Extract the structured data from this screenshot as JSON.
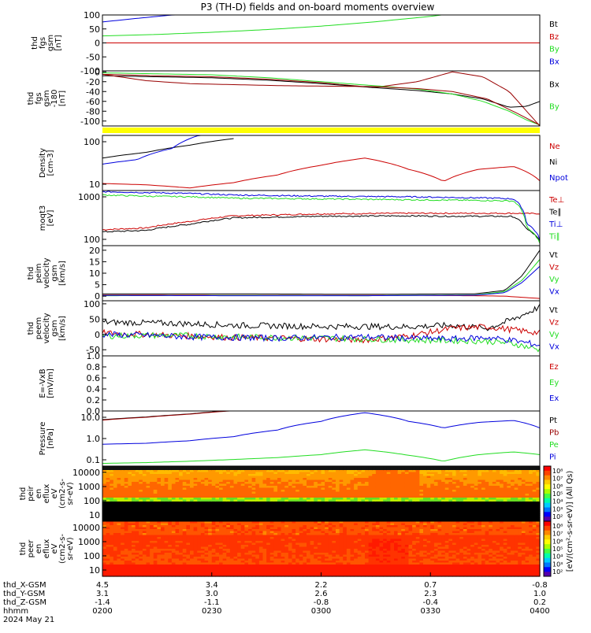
{
  "title": "P3 (TH-D) fields and on-board moments overview",
  "colors": {
    "black": "#000000",
    "red": "#cc0000",
    "green": "#22dd22",
    "blue": "#0000dd",
    "darkred": "#990000",
    "yellow": "#ffff00"
  },
  "chart_data": [
    {
      "type": "line",
      "ylabel": [
        "thd",
        "fgs",
        "gsm",
        "[nT]"
      ],
      "yticks": [
        "100",
        "50",
        "0",
        "-50",
        "-100"
      ],
      "ylim": [
        -100,
        100
      ],
      "legend": [
        "Bt",
        "Bz",
        "By",
        "Bx"
      ],
      "series": [
        {
          "name": "Bt",
          "color": "black",
          "x": [
            0,
            1
          ],
          "y": [
            0,
            0
          ]
        },
        {
          "name": "Bz",
          "color": "red",
          "x": [
            0,
            1
          ],
          "y": [
            0,
            0
          ]
        },
        {
          "name": "By",
          "color": "green",
          "x": [
            0,
            0.12,
            0.25,
            0.38,
            0.5,
            0.62,
            0.75,
            0.85
          ],
          "y": [
            25,
            30,
            38,
            48,
            60,
            75,
            95,
            115
          ]
        },
        {
          "name": "Bx",
          "color": "blue",
          "x": [
            0,
            0.08,
            0.16,
            0.24
          ],
          "y": [
            75,
            88,
            100,
            112
          ]
        }
      ]
    },
    {
      "type": "line",
      "ylabel": [
        "thd",
        "fgs",
        "gsm",
        "-180",
        "[nT]"
      ],
      "yticks": [
        "0",
        "-20",
        "-40",
        "-60",
        "-80",
        "-100"
      ],
      "ylim": [
        -110,
        2
      ],
      "legend": [
        "Bx",
        "By"
      ],
      "series": [
        {
          "name": "Bz",
          "color": "darkred",
          "x": [
            0,
            0.12,
            0.25,
            0.38,
            0.5,
            0.62,
            0.72,
            0.8,
            0.87,
            0.93,
            0.97,
            1
          ],
          "y": [
            -5,
            -8,
            -10,
            -15,
            -22,
            -32,
            -20,
            0,
            -10,
            -40,
            -80,
            -110
          ]
        },
        {
          "name": "Bt",
          "color": "black",
          "x": [
            0,
            0.12,
            0.25,
            0.38,
            0.5,
            0.62,
            0.72,
            0.8,
            0.87,
            0.93,
            0.97,
            1
          ],
          "y": [
            -8,
            -10,
            -12,
            -17,
            -24,
            -32,
            -38,
            -45,
            -55,
            -72,
            -70,
            -60
          ]
        },
        {
          "name": "By",
          "color": "green",
          "x": [
            0,
            0.12,
            0.25,
            0.38,
            0.5,
            0.62,
            0.72,
            0.8,
            0.87,
            0.93,
            0.97,
            1
          ],
          "y": [
            -2,
            -4,
            -6,
            -12,
            -20,
            -28,
            -35,
            -45,
            -60,
            -80,
            -98,
            -108
          ]
        },
        {
          "name": "Bx",
          "color": "darkred",
          "x": [
            0,
            0.1,
            0.2,
            0.3,
            0.4,
            0.5,
            0.62,
            0.72,
            0.8,
            0.88,
            0.95,
            1
          ],
          "y": [
            -5,
            -18,
            -24,
            -26,
            -28,
            -29,
            -30,
            -34,
            -40,
            -55,
            -85,
            -108
          ]
        }
      ]
    },
    {
      "type": "line",
      "ylabel": [
        "Density",
        "[cm-3]"
      ],
      "yticks": [
        "100",
        "10"
      ],
      "log": true,
      "ylim": [
        2,
        100
      ],
      "legend": [
        "Ne",
        "Ni",
        "Npot"
      ],
      "series": [
        {
          "name": "Ne",
          "color": "red",
          "x": [
            0,
            0.1,
            0.2,
            0.3,
            0.4,
            0.5,
            0.6,
            0.7,
            0.78,
            0.86,
            0.94,
            1
          ],
          "y": [
            3.3,
            3,
            2.4,
            3.5,
            6,
            12,
            20,
            9,
            3.8,
            9,
            11,
            4
          ]
        },
        {
          "name": "Ni",
          "color": "black",
          "x": [
            0,
            0.1,
            0.2,
            0.3
          ],
          "y": [
            20,
            30,
            50,
            80
          ]
        },
        {
          "name": "Npot",
          "color": "blue",
          "x": [
            0,
            0.08,
            0.16,
            0.24
          ],
          "y": [
            13,
            18,
            40,
            120
          ]
        }
      ]
    },
    {
      "type": "line",
      "ylabel": [
        "moqt3",
        "[eV]"
      ],
      "yticks": [
        "1000",
        "100"
      ],
      "log": true,
      "ylim": [
        20,
        3000
      ],
      "legend": [
        "Te⊥",
        "Te∥",
        "Ti⊥",
        "Ti∥"
      ],
      "series": [
        {
          "name": "Te⊥",
          "color": "red",
          "x": [
            0,
            0.1,
            0.2,
            0.3,
            0.5,
            0.7,
            0.8,
            0.9,
            0.94,
            0.97,
            1
          ],
          "y": [
            85,
            100,
            180,
            300,
            360,
            380,
            380,
            380,
            380,
            370,
            370
          ]
        },
        {
          "name": "Te∥",
          "color": "black",
          "x": [
            0,
            0.1,
            0.2,
            0.3,
            0.5,
            0.7,
            0.8,
            0.9,
            0.94,
            0.97,
            1
          ],
          "y": [
            70,
            80,
            140,
            250,
            290,
            300,
            290,
            290,
            280,
            90,
            30
          ]
        },
        {
          "name": "Ti⊥",
          "color": "blue",
          "x": [
            0,
            0.1,
            0.2,
            0.3,
            0.5,
            0.7,
            0.8,
            0.9,
            0.94,
            0.97,
            1
          ],
          "y": [
            2700,
            2500,
            2300,
            2000,
            1800,
            1700,
            1600,
            1500,
            1400,
            150,
            35
          ]
        },
        {
          "name": "Ti∥",
          "color": "green",
          "x": [
            0,
            0.1,
            0.2,
            0.3,
            0.5,
            0.7,
            0.8,
            0.9,
            0.94,
            0.97,
            1
          ],
          "y": [
            2000,
            1800,
            1700,
            1500,
            1400,
            1300,
            1250,
            1200,
            1150,
            100,
            25
          ]
        }
      ]
    },
    {
      "type": "line",
      "ylabel": [
        "thd",
        "peim",
        "velocity",
        "gsm",
        "[km/s]"
      ],
      "yticks": [
        "20",
        "15",
        "10",
        "5",
        "0"
      ],
      "ylim": [
        -2,
        22
      ],
      "legend": [
        "Vt",
        "Vz",
        "Vy",
        "Vx"
      ],
      "series": [
        {
          "name": "Vt",
          "color": "black",
          "x": [
            0,
            0.3,
            0.6,
            0.85,
            0.92,
            0.96,
            1
          ],
          "y": [
            1,
            1,
            0.8,
            1,
            2.5,
            9,
            20
          ]
        },
        {
          "name": "Vz",
          "color": "red",
          "x": [
            0,
            0.3,
            0.6,
            0.85,
            0.92,
            0.96,
            1
          ],
          "y": [
            0.5,
            0.4,
            0.3,
            0.2,
            0,
            -0.5,
            -1
          ]
        },
        {
          "name": "Vy",
          "color": "green",
          "x": [
            0,
            0.3,
            0.6,
            0.85,
            0.92,
            0.96,
            1
          ],
          "y": [
            0.2,
            0.3,
            0.2,
            0.5,
            2,
            7,
            16
          ]
        },
        {
          "name": "Vx",
          "color": "blue",
          "x": [
            0,
            0.3,
            0.6,
            0.85,
            0.92,
            0.96,
            1
          ],
          "y": [
            0.3,
            0.2,
            0.2,
            0.4,
            1.5,
            6,
            13
          ]
        }
      ]
    },
    {
      "type": "line",
      "ylabel": [
        "thd",
        "peem",
        "velocity",
        "gsm",
        "[km/s]"
      ],
      "yticks": [
        "100",
        "50",
        "0",
        "-50"
      ],
      "ylim": [
        -70,
        110
      ],
      "legend": [
        "Vt",
        "Vz",
        "Vy",
        "Vx"
      ],
      "series": [
        {
          "name": "Vt",
          "color": "black",
          "x": [
            0,
            0.1,
            0.2,
            0.3,
            0.4,
            0.5,
            0.6,
            0.7,
            0.8,
            0.88,
            0.94,
            1
          ],
          "y": [
            40,
            38,
            35,
            30,
            28,
            26,
            26,
            25,
            30,
            20,
            50,
            90
          ]
        },
        {
          "name": "Vz",
          "color": "red",
          "x": [
            0,
            0.1,
            0.2,
            0.3,
            0.4,
            0.5,
            0.6,
            0.7,
            0.8,
            0.88,
            0.94,
            1
          ],
          "y": [
            5,
            0,
            -5,
            -10,
            -12,
            -15,
            -18,
            -5,
            20,
            25,
            15,
            5
          ]
        },
        {
          "name": "Vy",
          "color": "green",
          "x": [
            0,
            0.1,
            0.2,
            0.3,
            0.4,
            0.5,
            0.6,
            0.7,
            0.8,
            0.88,
            0.94,
            1
          ],
          "y": [
            -5,
            -3,
            -4,
            -8,
            -10,
            -12,
            -15,
            -18,
            -20,
            -22,
            -30,
            -50
          ]
        },
        {
          "name": "Vx",
          "color": "blue",
          "x": [
            0,
            0.1,
            0.2,
            0.3,
            0.4,
            0.5,
            0.6,
            0.7,
            0.8,
            0.88,
            0.94,
            1
          ],
          "y": [
            0,
            -3,
            -8,
            -10,
            -12,
            -10,
            -8,
            -12,
            -15,
            -10,
            -20,
            -35
          ]
        }
      ]
    },
    {
      "type": "line",
      "ylabel": [
        "E=-VxB",
        "[mV/m]"
      ],
      "yticks": [
        "1.0",
        "0.8",
        "0.6",
        "0.4",
        "0.2",
        "0.0"
      ],
      "ylim": [
        0,
        1
      ],
      "legend": [
        "Ez",
        "Ey",
        "Ex"
      ],
      "series": []
    },
    {
      "type": "line",
      "ylabel": [
        "Pressure",
        "[nPa]"
      ],
      "yticks": [
        "10.0",
        "1.0",
        "0.1"
      ],
      "log": true,
      "ylim": [
        0.09,
        30
      ],
      "legend": [
        "Pt",
        "Pb",
        "Pe",
        "Pi"
      ],
      "series": [
        {
          "name": "Pt",
          "color": "black",
          "x": [
            0,
            0.1,
            0.2,
            0.3
          ],
          "y": [
            12,
            16,
            22,
            32
          ]
        },
        {
          "name": "Pb",
          "color": "darkred",
          "x": [
            0,
            0.1,
            0.2,
            0.3
          ],
          "y": [
            11.5,
            15.5,
            21.5,
            31
          ]
        },
        {
          "name": "Pe",
          "color": "green",
          "x": [
            0,
            0.1,
            0.2,
            0.3,
            0.4,
            0.5,
            0.6,
            0.7,
            0.78,
            0.86,
            0.94,
            1
          ],
          "y": [
            0.12,
            0.13,
            0.15,
            0.18,
            0.22,
            0.3,
            0.5,
            0.28,
            0.15,
            0.3,
            0.4,
            0.3
          ]
        },
        {
          "name": "Pi",
          "color": "blue",
          "x": [
            0,
            0.1,
            0.2,
            0.3,
            0.4,
            0.5,
            0.6,
            0.7,
            0.78,
            0.86,
            0.94,
            1
          ],
          "y": [
            0.9,
            1.0,
            1.3,
            2,
            4,
            10,
            25,
            10,
            5,
            9,
            11,
            5
          ]
        }
      ]
    },
    {
      "type": "heatmap",
      "ylabel": [
        "thd",
        "peir",
        "en",
        "eflux",
        "eV",
        "(cm2-s-",
        "sr-eV)"
      ],
      "yticks": [
        "10000",
        "1000",
        "100",
        "10"
      ],
      "ylim": [
        7,
        30000
      ],
      "log": true
    },
    {
      "type": "heatmap",
      "ylabel": [
        "thd",
        "peer",
        "en",
        "eflux",
        "eV",
        "(cm2-s-",
        "sr-eV)"
      ],
      "yticks": [
        "10000",
        "1000",
        "100",
        "10"
      ],
      "ylim": [
        7,
        30000
      ],
      "log": true
    }
  ],
  "colorbar": {
    "label": "[eV/(cm²-s-sr-eV)] (All Qs)",
    "ticks": [
      "10⁸",
      "10⁷",
      "10⁶",
      "10⁵",
      "10⁴",
      "10³",
      "10²"
    ]
  },
  "footer": {
    "rows": [
      {
        "label": "thd_X-GSM",
        "values": [
          "4.5",
          "3.4",
          "2.2",
          "0.7",
          "-0.8"
        ]
      },
      {
        "label": "thd_Y-GSM",
        "values": [
          "3.1",
          "3.0",
          "2.6",
          "2.3",
          "1.0"
        ]
      },
      {
        "label": "thd_Z-GSM",
        "values": [
          "-1.4",
          "-1.1",
          "-0.8",
          "-0.4",
          "0.2"
        ]
      },
      {
        "label": "hhmm",
        "values": [
          "0200",
          "0230",
          "0300",
          "0330",
          "0400"
        ]
      }
    ],
    "date": "2024 May 21"
  }
}
